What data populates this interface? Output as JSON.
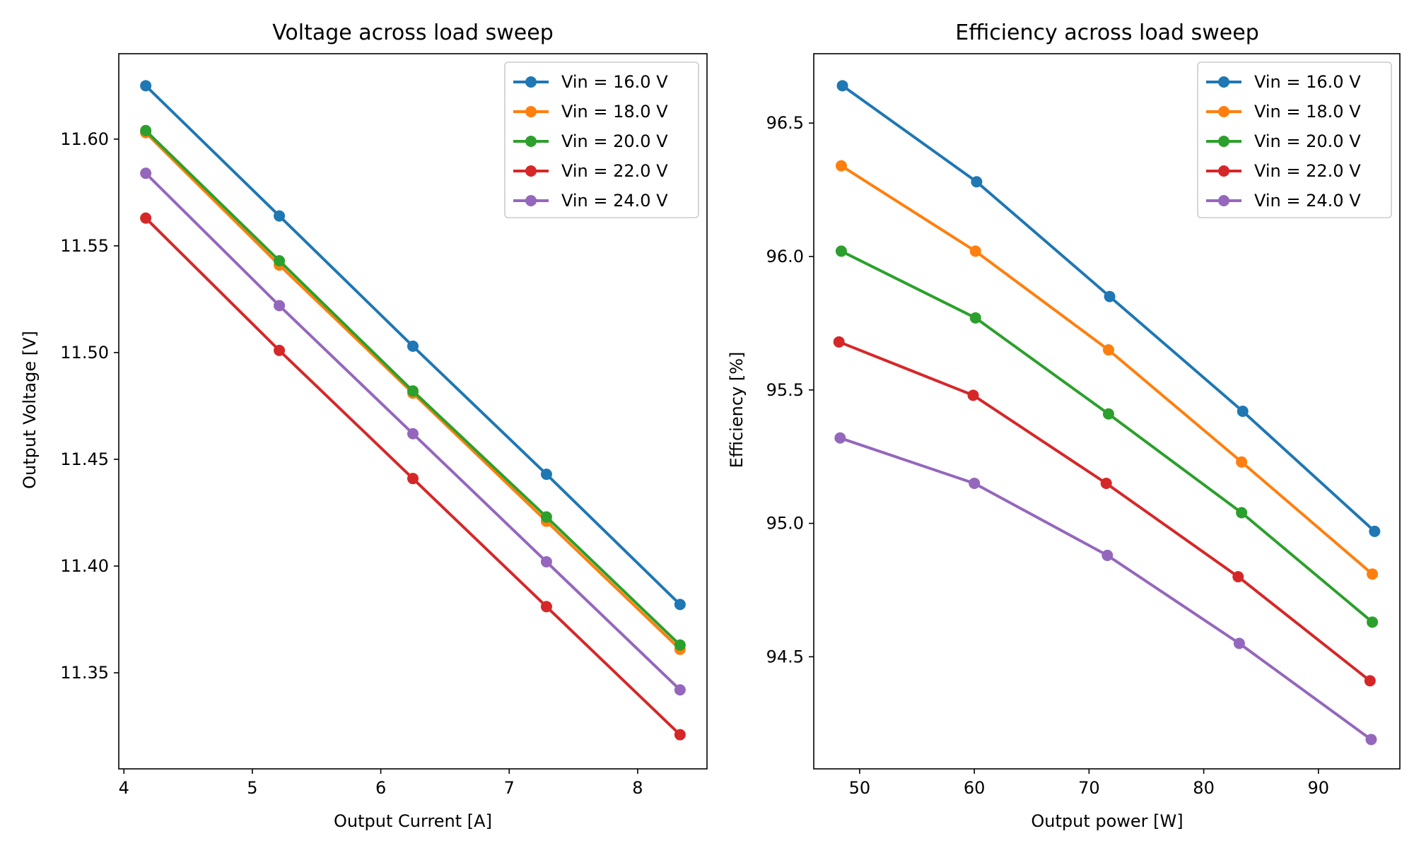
{
  "chart_data": [
    {
      "type": "line",
      "title": "Voltage across load sweep",
      "xlabel": "Output Current [A]",
      "ylabel": "Output Voltage [V]",
      "xlim": [
        3.96,
        8.54
      ],
      "ylim": [
        11.305,
        11.64
      ],
      "xticks": [
        4,
        5,
        6,
        7,
        8
      ],
      "yticks": [
        11.35,
        11.4,
        11.45,
        11.5,
        11.55,
        11.6
      ],
      "ytick_decimals": 2,
      "grid": false,
      "legend_position": "top-right",
      "x": [
        4.17,
        5.21,
        6.25,
        7.29,
        8.33
      ],
      "series": [
        {
          "name": "Vin = 16.0 V",
          "color": "#1f77b4",
          "values": [
            11.625,
            11.564,
            11.503,
            11.443,
            11.382
          ]
        },
        {
          "name": "Vin = 18.0 V",
          "color": "#ff7f0e",
          "values": [
            11.603,
            11.541,
            11.481,
            11.421,
            11.361
          ]
        },
        {
          "name": "Vin = 20.0 V",
          "color": "#2ca02c",
          "values": [
            11.604,
            11.543,
            11.482,
            11.423,
            11.363
          ]
        },
        {
          "name": "Vin = 22.0 V",
          "color": "#d62728",
          "values": [
            11.563,
            11.501,
            11.441,
            11.381,
            11.321
          ]
        },
        {
          "name": "Vin = 24.0 V",
          "color": "#9467bd",
          "values": [
            11.584,
            11.522,
            11.462,
            11.402,
            11.342
          ]
        }
      ]
    },
    {
      "type": "line",
      "title": "Efficiency across load sweep",
      "xlabel": "Output power [W]",
      "ylabel": "Efficiency [%]",
      "xlim": [
        46.0,
        97.1
      ],
      "ylim": [
        94.08,
        96.76
      ],
      "xticks": [
        50,
        60,
        70,
        80,
        90
      ],
      "yticks": [
        94.5,
        95.0,
        95.5,
        96.0,
        96.5
      ],
      "ytick_decimals": 1,
      "grid": false,
      "legend_position": "top-right",
      "series": [
        {
          "name": "Vin = 16.0 V",
          "color": "#1f77b4",
          "x": [
            48.5,
            60.2,
            71.8,
            83.4,
            94.9
          ],
          "values": [
            96.64,
            96.28,
            95.85,
            95.42,
            94.97
          ]
        },
        {
          "name": "Vin = 18.0 V",
          "color": "#ff7f0e",
          "x": [
            48.4,
            60.1,
            71.7,
            83.3,
            94.7
          ],
          "values": [
            96.34,
            96.02,
            95.65,
            95.23,
            94.81
          ]
        },
        {
          "name": "Vin = 20.0 V",
          "color": "#2ca02c",
          "x": [
            48.4,
            60.1,
            71.7,
            83.3,
            94.7
          ],
          "values": [
            96.02,
            95.77,
            95.41,
            95.04,
            94.63
          ]
        },
        {
          "name": "Vin = 22.0 V",
          "color": "#d62728",
          "x": [
            48.2,
            59.9,
            71.5,
            83.0,
            94.5
          ],
          "values": [
            95.68,
            95.48,
            95.15,
            94.8,
            94.41
          ]
        },
        {
          "name": "Vin = 24.0 V",
          "color": "#9467bd",
          "x": [
            48.3,
            60.0,
            71.6,
            83.1,
            94.6
          ],
          "values": [
            95.32,
            95.15,
            94.88,
            94.55,
            94.19
          ]
        }
      ]
    }
  ]
}
